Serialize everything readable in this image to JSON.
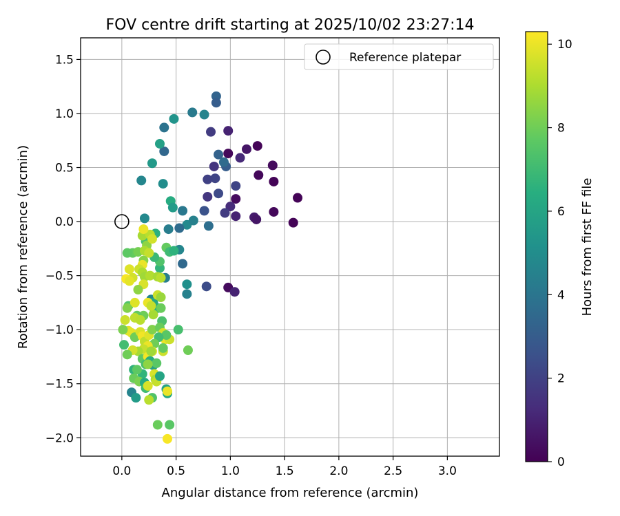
{
  "chart_data": {
    "type": "scatter",
    "title": "FOV centre drift starting at 2025/10/02 23:27:14",
    "xlabel": "Angular distance from reference (arcmin)",
    "ylabel": "Rotation from reference (arcmin)",
    "xlim": [
      -0.38,
      3.48
    ],
    "ylim": [
      -2.17,
      1.7
    ],
    "x_ticks": [
      0.0,
      0.5,
      1.0,
      1.5,
      2.0,
      2.5,
      3.0
    ],
    "x_tick_labels": [
      "0.0",
      "0.5",
      "1.0",
      "1.5",
      "2.0",
      "2.5",
      "3.0"
    ],
    "y_ticks": [
      1.5,
      1.0,
      0.5,
      0.0,
      -0.5,
      -1.0,
      -1.5,
      -2.0
    ],
    "y_tick_labels": [
      "1.5",
      "1.0",
      "0.5",
      "0.0",
      "−0.5",
      "−1.0",
      "−1.5",
      "−2.0"
    ],
    "grid": true,
    "legend": {
      "position": "top-right",
      "entries": [
        "Reference platepar"
      ]
    },
    "reference_point": {
      "x": 0.0,
      "y": 0.0
    },
    "colorbar": {
      "label": "Hours from first FF file",
      "colormap": "viridis",
      "range": [
        0,
        10.3
      ],
      "ticks": [
        0,
        2,
        4,
        6,
        8,
        10
      ],
      "tick_labels": [
        "0",
        "2",
        "4",
        "6",
        "8",
        "10"
      ]
    },
    "points": [
      [
        1.62,
        0.22,
        0.1
      ],
      [
        1.58,
        -0.01,
        0.1
      ],
      [
        1.4,
        0.37,
        0.1
      ],
      [
        1.39,
        0.52,
        0.3
      ],
      [
        1.4,
        0.09,
        0.2
      ],
      [
        1.25,
        0.7,
        0.1
      ],
      [
        1.26,
        0.43,
        0.2
      ],
      [
        1.22,
        0.04,
        0.8
      ],
      [
        1.24,
        0.02,
        0.6
      ],
      [
        1.15,
        0.67,
        0.6
      ],
      [
        1.09,
        0.59,
        1.2
      ],
      [
        1.05,
        0.33,
        2.1
      ],
      [
        1.05,
        0.21,
        0.3
      ],
      [
        1.05,
        0.05,
        1.0
      ],
      [
        1.0,
        0.14,
        1.3
      ],
      [
        0.98,
        0.84,
        1.0
      ],
      [
        0.98,
        0.63,
        0.2
      ],
      [
        0.98,
        -0.61,
        0.3
      ],
      [
        1.04,
        -0.65,
        1.0
      ],
      [
        0.95,
        0.08,
        1.8
      ],
      [
        0.96,
        0.51,
        3.0
      ],
      [
        0.94,
        0.55,
        3.6
      ],
      [
        0.89,
        0.62,
        3.2
      ],
      [
        0.89,
        0.26,
        2.3
      ],
      [
        0.86,
        0.4,
        2.1
      ],
      [
        0.85,
        0.51,
        1.6
      ],
      [
        0.82,
        0.83,
        1.8
      ],
      [
        0.79,
        0.39,
        2.0
      ],
      [
        0.79,
        0.23,
        1.6
      ],
      [
        0.78,
        -0.6,
        2.4
      ],
      [
        0.76,
        0.1,
        2.6
      ],
      [
        0.8,
        -0.04,
        3.7
      ],
      [
        0.87,
        1.16,
        3.3
      ],
      [
        0.87,
        1.1,
        3.0
      ],
      [
        0.76,
        0.99,
        4.6
      ],
      [
        0.65,
        1.01,
        4.2
      ],
      [
        0.6,
        -0.03,
        4.8
      ],
      [
        0.56,
        0.1,
        4.1
      ],
      [
        0.66,
        0.01,
        4.5
      ],
      [
        0.53,
        -0.06,
        3.6
      ],
      [
        0.56,
        -0.39,
        3.5
      ],
      [
        0.6,
        -0.58,
        5.1
      ],
      [
        0.6,
        -0.67,
        4.5
      ],
      [
        0.48,
        0.95,
        5.3
      ],
      [
        0.39,
        0.87,
        3.9
      ],
      [
        0.39,
        0.65,
        3.4
      ],
      [
        0.35,
        0.72,
        5.8
      ],
      [
        0.28,
        0.54,
        5.5
      ],
      [
        0.38,
        0.35,
        5.0
      ],
      [
        0.18,
        0.38,
        4.7
      ],
      [
        0.45,
        0.19,
        6.3
      ],
      [
        0.47,
        0.13,
        5.6
      ],
      [
        0.21,
        0.03,
        4.8
      ],
      [
        0.43,
        -0.07,
        4.3
      ],
      [
        0.31,
        -0.11,
        6.5
      ],
      [
        0.53,
        -0.26,
        4.7
      ],
      [
        0.41,
        -0.24,
        7.8
      ],
      [
        0.44,
        -0.28,
        7.0
      ],
      [
        0.48,
        -0.27,
        6.6
      ],
      [
        0.4,
        -0.52,
        4.4
      ],
      [
        0.35,
        -0.43,
        6.7
      ],
      [
        0.35,
        -0.37,
        7.4
      ],
      [
        0.3,
        -0.33,
        6.9
      ],
      [
        0.22,
        -0.18,
        7.2
      ],
      [
        0.23,
        -0.22,
        8.5
      ],
      [
        0.1,
        -0.29,
        7.8
      ],
      [
        0.05,
        -0.29,
        7.7
      ],
      [
        0.15,
        -0.28,
        8.1
      ],
      [
        0.19,
        -0.13,
        8.9
      ],
      [
        0.26,
        -0.12,
        9.2
      ],
      [
        0.2,
        -0.07,
        10.0
      ],
      [
        0.28,
        -0.16,
        9.6
      ],
      [
        0.21,
        -0.27,
        9.0
      ],
      [
        0.25,
        -0.29,
        9.4
      ],
      [
        0.2,
        -0.36,
        8.4
      ],
      [
        0.19,
        -0.4,
        10.0
      ],
      [
        0.16,
        -0.44,
        9.5
      ],
      [
        0.07,
        -0.44,
        9.8
      ],
      [
        0.1,
        -0.52,
        9.6
      ],
      [
        0.04,
        -0.53,
        10.2
      ],
      [
        0.07,
        -0.55,
        9.9
      ],
      [
        0.19,
        -0.47,
        9.0
      ],
      [
        0.21,
        -0.51,
        8.8
      ],
      [
        0.26,
        -0.5,
        9.1
      ],
      [
        0.2,
        -0.58,
        9.7
      ],
      [
        0.15,
        -0.63,
        8.5
      ],
      [
        0.33,
        -0.51,
        8.9
      ],
      [
        0.36,
        -0.52,
        9.2
      ],
      [
        0.27,
        -0.72,
        4.7
      ],
      [
        0.29,
        -0.75,
        6.1
      ],
      [
        0.33,
        -0.68,
        9.5
      ],
      [
        0.36,
        -0.7,
        8.7
      ],
      [
        0.3,
        -0.81,
        5.5
      ],
      [
        0.33,
        -0.8,
        6.4
      ],
      [
        0.36,
        -0.8,
        7.9
      ],
      [
        0.37,
        -0.92,
        7.3
      ],
      [
        0.29,
        -0.86,
        8.9
      ],
      [
        0.2,
        -0.87,
        8.0
      ],
      [
        0.14,
        -0.87,
        7.8
      ],
      [
        0.12,
        -0.89,
        9.3
      ],
      [
        0.17,
        -0.91,
        9.2
      ],
      [
        0.06,
        -0.78,
        7.4
      ],
      [
        0.12,
        -0.75,
        9.8
      ],
      [
        0.24,
        -0.75,
        10.0
      ],
      [
        0.27,
        -0.78,
        9.4
      ],
      [
        0.05,
        -0.8,
        8.3
      ],
      [
        0.03,
        -0.91,
        9.5
      ],
      [
        0.06,
        -1.01,
        9.8
      ],
      [
        0.09,
        -1.03,
        9.9
      ],
      [
        0.01,
        -1.0,
        8.2
      ],
      [
        0.02,
        -1.14,
        7.1
      ],
      [
        0.12,
        -1.07,
        8.0
      ],
      [
        0.17,
        -1.02,
        9.7
      ],
      [
        0.19,
        -1.06,
        10.1
      ],
      [
        0.21,
        -1.11,
        9.3
      ],
      [
        0.25,
        -1.05,
        9.8
      ],
      [
        0.28,
        -1.0,
        8.3
      ],
      [
        0.35,
        -0.98,
        7.9
      ],
      [
        0.38,
        -1.03,
        9.6
      ],
      [
        0.4,
        -1.09,
        10.0
      ],
      [
        0.44,
        -1.09,
        9.5
      ],
      [
        0.41,
        -1.05,
        7.6
      ],
      [
        0.34,
        -1.07,
        7.1
      ],
      [
        0.3,
        -1.13,
        8.0
      ],
      [
        0.28,
        -1.2,
        9.8
      ],
      [
        0.24,
        -1.15,
        10.0
      ],
      [
        0.2,
        -1.18,
        9.4
      ],
      [
        0.15,
        -1.2,
        8.9
      ],
      [
        0.1,
        -1.19,
        9.6
      ],
      [
        0.05,
        -1.23,
        8.0
      ],
      [
        0.19,
        -1.27,
        7.7
      ],
      [
        0.24,
        -1.25,
        10.1
      ],
      [
        0.26,
        -1.29,
        6.4
      ],
      [
        0.29,
        -1.33,
        5.8
      ],
      [
        0.32,
        -1.31,
        7.6
      ],
      [
        0.38,
        -1.2,
        9.5
      ],
      [
        0.38,
        -1.17,
        7.8
      ],
      [
        0.52,
        -1.0,
        7.2
      ],
      [
        0.61,
        -1.19,
        8.0
      ],
      [
        0.22,
        -1.32,
        7.2
      ],
      [
        0.19,
        -1.41,
        6.7
      ],
      [
        0.11,
        -1.37,
        6.6
      ],
      [
        0.14,
        -1.37,
        7.7
      ],
      [
        0.11,
        -1.45,
        7.9
      ],
      [
        0.16,
        -1.48,
        8.2
      ],
      [
        0.3,
        -1.41,
        9.7
      ],
      [
        0.31,
        -1.46,
        9.0
      ],
      [
        0.32,
        -1.48,
        9.4
      ],
      [
        0.35,
        -1.43,
        6.0
      ],
      [
        0.41,
        -1.55,
        5.9
      ],
      [
        0.42,
        -1.59,
        6.2
      ],
      [
        0.21,
        -1.49,
        6.3
      ],
      [
        0.22,
        -1.54,
        7.0
      ],
      [
        0.24,
        -1.52,
        9.7
      ],
      [
        0.28,
        -1.63,
        7.4
      ],
      [
        0.25,
        -1.65,
        9.2
      ],
      [
        0.09,
        -1.58,
        4.6
      ],
      [
        0.13,
        -1.63,
        5.6
      ],
      [
        0.33,
        -1.88,
        7.9
      ],
      [
        0.44,
        -1.88,
        7.6
      ],
      [
        0.42,
        -2.01,
        10.2
      ],
      [
        0.42,
        -1.57,
        10.0
      ],
      [
        0.24,
        -1.32,
        8.5
      ],
      [
        0.27,
        -1.2,
        8.8
      ]
    ]
  }
}
